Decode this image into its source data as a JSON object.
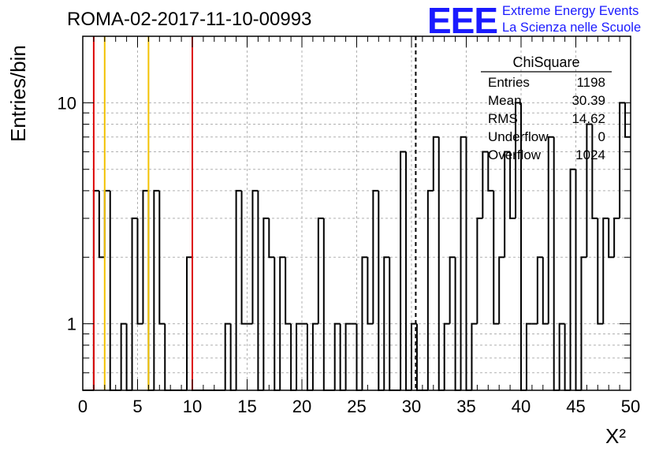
{
  "header": {
    "run_title": "ROMA-02-2017-11-10-00993",
    "logo_letters": "EEE",
    "logo_line1": "Extreme Energy Events",
    "logo_line2": "La Scienza nelle Scuole",
    "logo_color": "#1a1aff"
  },
  "stats_box": {
    "title": "ChiSquare",
    "rows": [
      {
        "label": "Entries",
        "value": "1198"
      },
      {
        "label": "Mean",
        "value": "30.39"
      },
      {
        "label": "RMS",
        "value": "14.62"
      },
      {
        "label": "Underflow",
        "value": "0"
      },
      {
        "label": "Overflow",
        "value": "1024"
      }
    ]
  },
  "chart_data": {
    "type": "bar",
    "histogram": true,
    "xlabel": "X²",
    "ylabel": "Entries/bin",
    "xlim": [
      0,
      50
    ],
    "ylim": [
      0.5,
      20
    ],
    "log_y": true,
    "grid": true,
    "bin_width": 0.5,
    "x_ticks": [
      0,
      5,
      10,
      15,
      20,
      25,
      30,
      35,
      40,
      45,
      50
    ],
    "y_ticks": [
      1,
      10
    ],
    "values": [
      0,
      0,
      4,
      2,
      4,
      0,
      0,
      1,
      0,
      3,
      1,
      4,
      0,
      4,
      1,
      0,
      0,
      0,
      0,
      2,
      0,
      0,
      0,
      0,
      0,
      0,
      1,
      0,
      4,
      1,
      1,
      4,
      0,
      3,
      2,
      0,
      2,
      1,
      0,
      1,
      1,
      0,
      1,
      3,
      0,
      0,
      1,
      0,
      1,
      1,
      0,
      2,
      1,
      4,
      0,
      2,
      0,
      0,
      6,
      0,
      1,
      0,
      0,
      4,
      7,
      0,
      1,
      2,
      0,
      7,
      0,
      1,
      3,
      6,
      4,
      1,
      2,
      6,
      3,
      10,
      0,
      1,
      1,
      2,
      1,
      7,
      0,
      1,
      0,
      5,
      0,
      2,
      8,
      3,
      1,
      3,
      2,
      3,
      10,
      7
    ],
    "reference_lines": [
      {
        "x": 1,
        "color": "#dd0000",
        "style": "solid"
      },
      {
        "x": 2,
        "color": "#f2c200",
        "style": "solid"
      },
      {
        "x": 6,
        "color": "#f2c200",
        "style": "solid"
      },
      {
        "x": 10,
        "color": "#dd0000",
        "style": "solid"
      },
      {
        "x": 30.39,
        "color": "#000000",
        "style": "dashed"
      }
    ]
  }
}
